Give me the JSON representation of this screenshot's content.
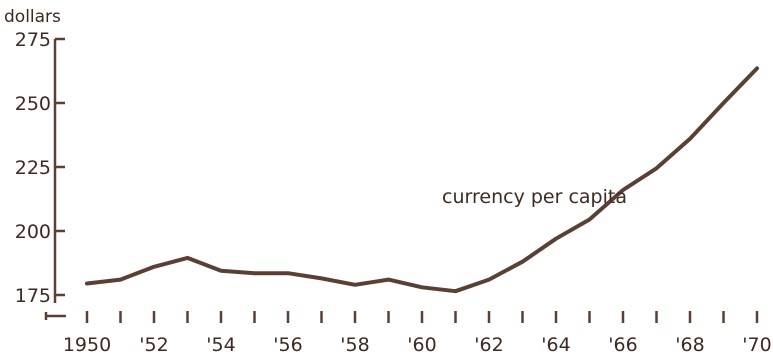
{
  "colors": {
    "ink": "#5a4034",
    "text": "#3d2a22",
    "background": "#ffffff"
  },
  "chart_data": {
    "type": "line",
    "title": "",
    "xlabel": "",
    "ylabel": "dollars",
    "y_unit_label": "dollars",
    "ylim": [
      175,
      275
    ],
    "y_axis_break": true,
    "yticks": [
      175,
      200,
      225,
      250,
      275
    ],
    "ytick_labels": [
      "175",
      "200",
      "225",
      "250",
      "275"
    ],
    "xlim": [
      1950,
      1970
    ],
    "xticks": [
      1950,
      1952,
      1954,
      1956,
      1958,
      1960,
      1962,
      1964,
      1966,
      1968,
      1970
    ],
    "xtick_labels": [
      "1950",
      "'52",
      "'54",
      "'56",
      "'58",
      "'60",
      "'62",
      "'64",
      "'66",
      "'68",
      "'70"
    ],
    "grid": false,
    "series": [
      {
        "name": "currency per capita",
        "x": [
          1950,
          1951,
          1952,
          1953,
          1954,
          1955,
          1956,
          1957,
          1958,
          1959,
          1960,
          1961,
          1962,
          1963,
          1964,
          1965,
          1966,
          1967,
          1968,
          1969,
          1970
        ],
        "y": [
          179.5,
          181,
          186,
          189.5,
          184.5,
          183.5,
          183.5,
          181.5,
          179,
          181,
          178,
          176.5,
          181,
          188,
          197,
          204.5,
          216,
          224.5,
          236,
          250,
          263.5
        ]
      }
    ],
    "annotations": [
      {
        "text": "currency per capita",
        "x": 1966,
        "y": 207
      }
    ]
  }
}
